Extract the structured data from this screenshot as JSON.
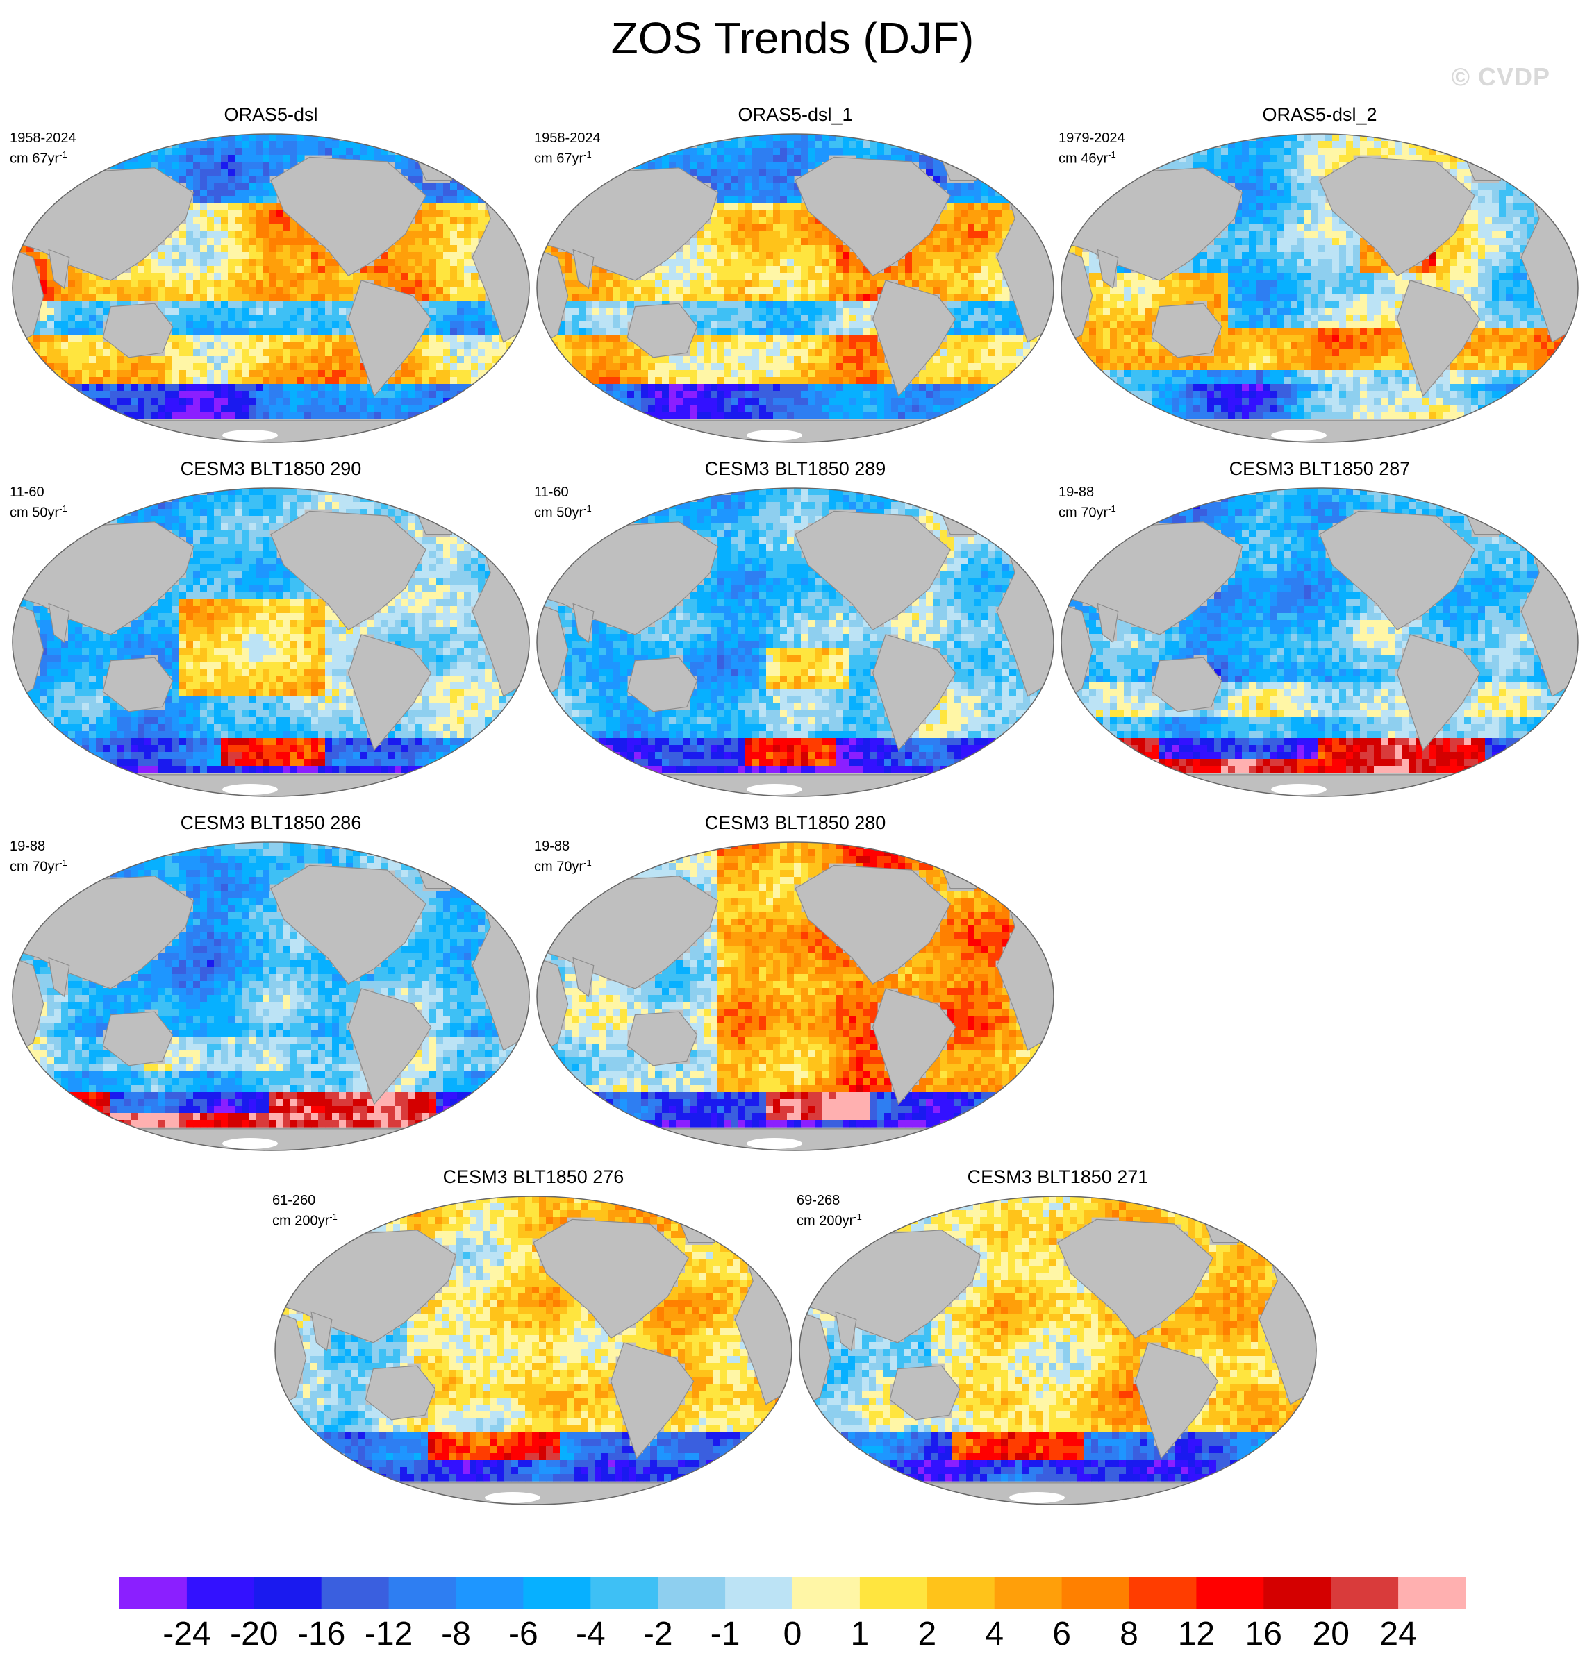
{
  "title": "ZOS Trends (DJF)",
  "watermark": "© CVDP",
  "panels": [
    {
      "title": "ORAS5-dsl",
      "years": "1958-2024",
      "units_base": "cm 67yr",
      "units_exp": "-1",
      "pattern": "oras-a"
    },
    {
      "title": "ORAS5-dsl_1",
      "years": "1958-2024",
      "units_base": "cm 67yr",
      "units_exp": "-1",
      "pattern": "oras-a"
    },
    {
      "title": "ORAS5-dsl_2",
      "years": "1979-2024",
      "units_base": "cm 46yr",
      "units_exp": "-1",
      "pattern": "oras-b"
    },
    {
      "title": "CESM3 BLT1850 290",
      "years": "11-60",
      "units_base": "cm 50yr",
      "units_exp": "-1",
      "pattern": "cesm-mixed"
    },
    {
      "title": "CESM3 BLT1850 289",
      "years": "11-60",
      "units_base": "cm 50yr",
      "units_exp": "-1",
      "pattern": "cesm-cool"
    },
    {
      "title": "CESM3 BLT1850 287",
      "years": "19-88",
      "units_base": "cm 70yr",
      "units_exp": "-1",
      "pattern": "cesm-cool-south-warm"
    },
    {
      "title": "CESM3 BLT1850 286",
      "years": "19-88",
      "units_base": "cm 70yr",
      "units_exp": "-1",
      "pattern": "cesm-cool-south-warm"
    },
    {
      "title": "CESM3 BLT1850 280",
      "years": "19-88",
      "units_base": "cm 70yr",
      "units_exp": "-1",
      "pattern": "cesm-warm"
    },
    {
      "title": "CESM3 BLT1850 276",
      "years": "61-260",
      "units_base": "cm 200yr",
      "units_exp": "-1",
      "pattern": "cesm-yellow"
    },
    {
      "title": "CESM3 BLT1850 271",
      "years": "69-268",
      "units_base": "cm 200yr",
      "units_exp": "-1",
      "pattern": "cesm-yellow"
    }
  ],
  "colorbar": {
    "colors": [
      "#8b1fff",
      "#3311ff",
      "#1a1aef",
      "#3a5fdf",
      "#2e7ef2",
      "#1e96ff",
      "#07b0ff",
      "#3ec0f5",
      "#8ecfef",
      "#bce3f5",
      "#fff6a6",
      "#ffe53f",
      "#ffc31a",
      "#ff9f0a",
      "#ff8000",
      "#ff3d00",
      "#ff0000",
      "#d40000",
      "#d93b3b",
      "#ffb0b0"
    ],
    "tick_labels": [
      "-24",
      "-20",
      "-16",
      "-12",
      "-8",
      "-6",
      "-4",
      "-2",
      "-1",
      "0",
      "1",
      "2",
      "4",
      "6",
      "8",
      "12",
      "16",
      "20",
      "24"
    ]
  },
  "colors": {
    "land": "#bfbfbf",
    "coast": "#8c8c8c",
    "border": "#666666",
    "ice": "#ffffff"
  }
}
